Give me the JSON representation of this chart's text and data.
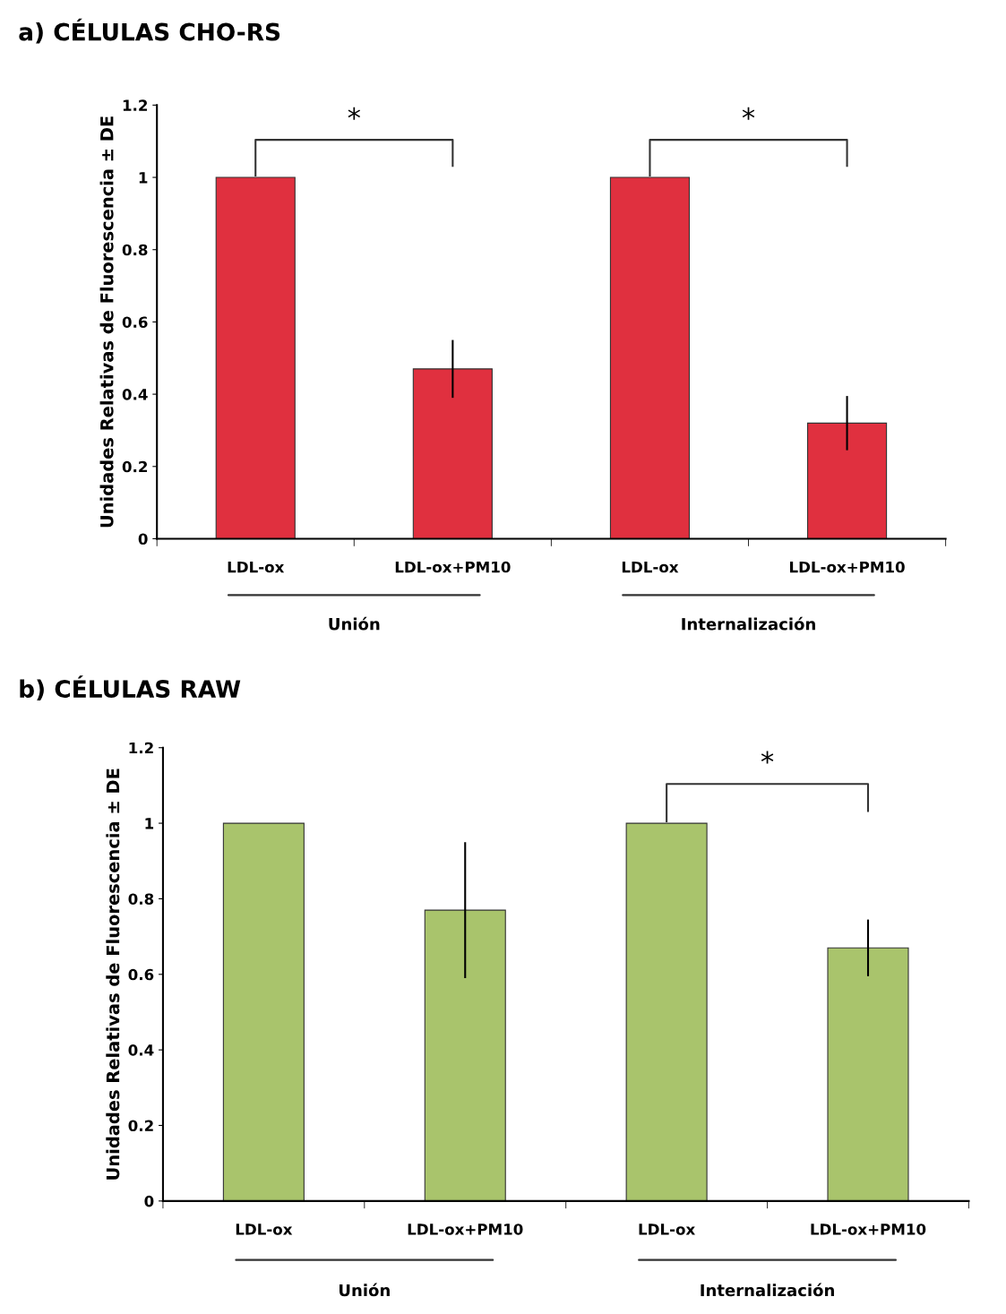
{
  "chart_data": [
    {
      "type": "bar",
      "title": "a) CÉLULAS CHO-RS",
      "ylabel": "Unidades Relativas de Fluorescencia ± DE",
      "categories": [
        "LDL-ox",
        "LDL-ox+PM10",
        "LDL-ox",
        "LDL-ox+PM10"
      ],
      "values": [
        1,
        0.47,
        1,
        0.32
      ],
      "errors": [
        null,
        0.08,
        null,
        0.075
      ],
      "color": "#e0303f",
      "ylim": [
        0,
        1.2
      ],
      "yticks": [
        0,
        0.2,
        0.4,
        0.6,
        0.8,
        1,
        1.2
      ],
      "grid": false,
      "annotations": [
        "*",
        "*",
        "Unión",
        "Internalización"
      ]
    },
    {
      "type": "bar",
      "title": "b) CÉLULAS RAW",
      "ylabel": "Unidades Relativas de Fluorescencia ± DE",
      "categories": [
        "LDL-ox",
        "LDL-ox+PM10",
        "LDL-ox",
        "LDL-ox+PM10"
      ],
      "values": [
        1,
        0.77,
        1,
        0.67
      ],
      "errors": [
        null,
        0.18,
        null,
        0.075
      ],
      "color": "#a9c46c",
      "ylim": [
        0,
        1.2
      ],
      "yticks": [
        0,
        0.2,
        0.4,
        0.6,
        0.8,
        1,
        1.2
      ],
      "grid": false,
      "annotations": [
        "*",
        "Unión",
        "Internalización"
      ]
    }
  ]
}
